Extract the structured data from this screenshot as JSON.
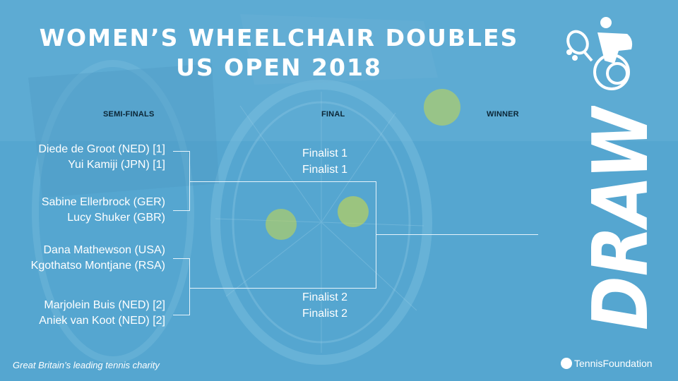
{
  "title": {
    "line1": "WOMEN’S WHEELCHAIR  DOUBLES",
    "line2": "US OPEN 2018"
  },
  "headings": {
    "semi_finals": "SEMI-FINALS",
    "final": "FINAL",
    "winner": "WINNER"
  },
  "semi_finals": [
    {
      "players": [
        "Diede de Groot (NED) [1]",
        "Yui Kamiji (JPN) [1]"
      ]
    },
    {
      "players": [
        "Sabine Ellerbrock (GER)",
        "Lucy Shuker (GBR)"
      ]
    },
    {
      "players": [
        "Dana Mathewson (USA)",
        "Kgothatso Montjane (RSA)"
      ]
    },
    {
      "players": [
        "Marjolein Buis (NED) [2]",
        "Aniek van Koot (NED) [2]"
      ]
    }
  ],
  "final": [
    {
      "players": [
        "Finalist 1",
        "Finalist 1"
      ]
    },
    {
      "players": [
        "Finalist 2",
        "Finalist 2"
      ]
    }
  ],
  "draw_label": "DRAW",
  "footer": {
    "tagline": "Great Britain’s leading tennis charity",
    "brand_prefix": "Tennis",
    "brand_suffix": "Foundation"
  },
  "colors": {
    "background": "#5aa8d0",
    "text": "#ffffff",
    "heading_text": "#0b2535",
    "ball": "#c9d94a"
  },
  "icons": {
    "logo": "wheelchair-tennis-player-icon",
    "brand": "tennis-ball-icon"
  }
}
